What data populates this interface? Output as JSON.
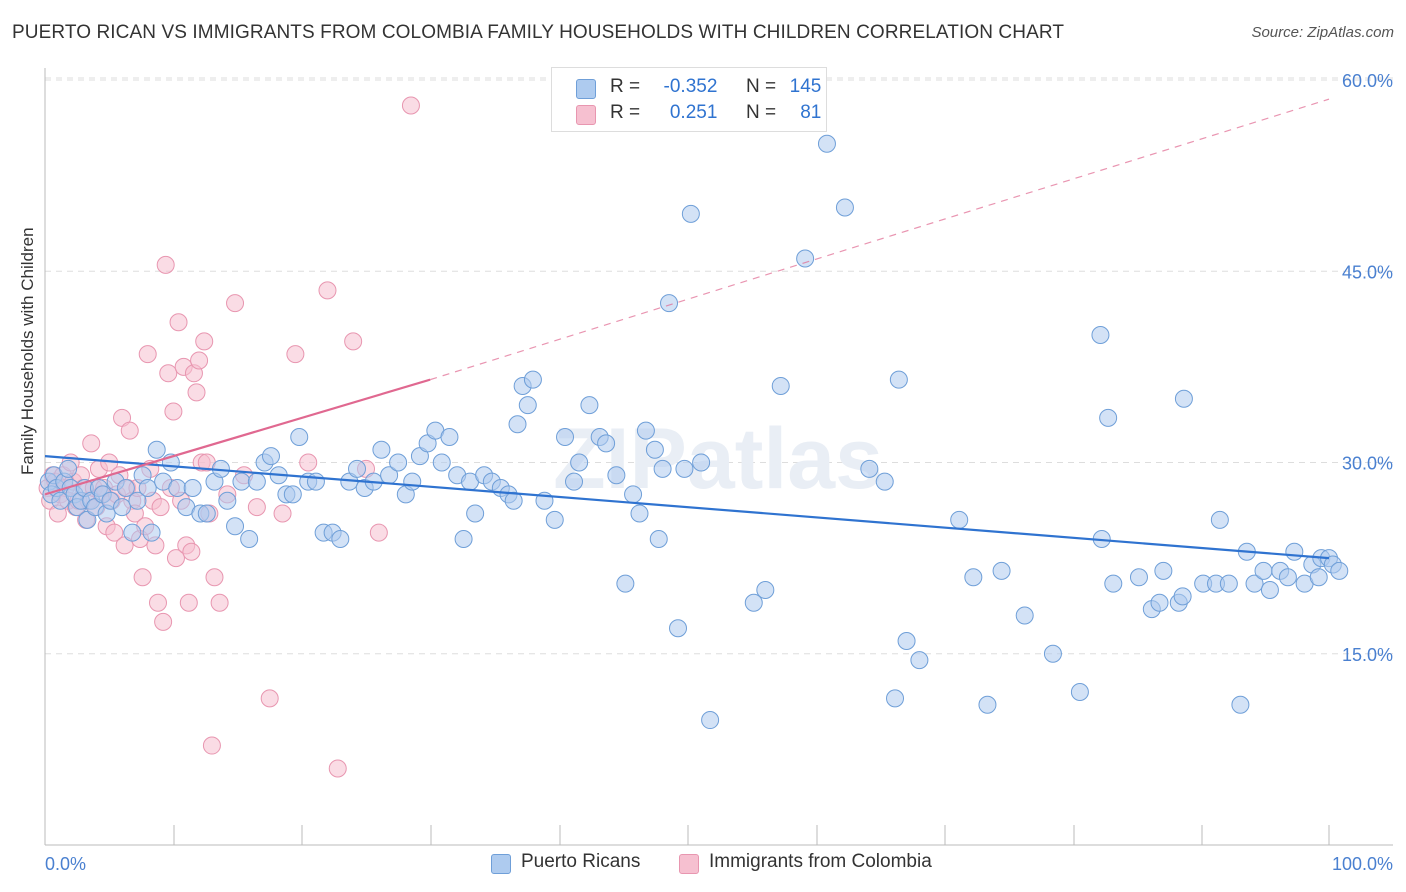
{
  "title": "PUERTO RICAN VS IMMIGRANTS FROM COLOMBIA FAMILY HOUSEHOLDS WITH CHILDREN CORRELATION CHART",
  "source": "Source: ZipAtlas.com",
  "watermark": "ZIPatlas",
  "colors": {
    "blue_fill": "#aecbef",
    "blue_stroke": "#6f9fd8",
    "blue_line": "#2f73d0",
    "pink_fill": "#f6c0d0",
    "pink_stroke": "#e896b0",
    "pink_line": "#e06890",
    "axis_text": "#4a80d0",
    "grid": "#dddddd"
  },
  "legend_top": {
    "rows": [
      {
        "r_label": "R =",
        "r_value": "-0.352",
        "n_label": "N =",
        "n_value": "145",
        "color": "blue"
      },
      {
        "r_label": "R =",
        "r_value": "0.251",
        "n_label": "N =",
        "n_value": "81",
        "color": "pink"
      }
    ]
  },
  "legend_bottom": {
    "items": [
      {
        "label": "Puerto Ricans",
        "color": "blue"
      },
      {
        "label": "Immigrants from Colombia",
        "color": "pink"
      }
    ]
  },
  "chart_data": {
    "type": "scatter",
    "title": "PUERTO RICAN VS IMMIGRANTS FROM COLOMBIA FAMILY HOUSEHOLDS WITH CHILDREN CORRELATION CHART",
    "xlabel": "",
    "ylabel": "Family Households with Children",
    "xlim": [
      0,
      100
    ],
    "ylim": [
      0,
      62
    ],
    "x_tick_labels": [
      "0.0%",
      "100.0%"
    ],
    "y_ticks": [
      15,
      30,
      45,
      60
    ],
    "y_tick_labels": [
      "15.0%",
      "30.0%",
      "45.0%",
      "60.0%"
    ],
    "grid": true,
    "legend_position": "top-center",
    "series": [
      {
        "name": "Puerto Ricans",
        "color": "blue",
        "r": -0.352,
        "n": 145,
        "trend": {
          "x": [
            0,
            100
          ],
          "y": [
            30.5,
            22.5
          ],
          "style": "solid"
        },
        "points": [
          [
            0.3,
            28.5
          ],
          [
            0.5,
            27.5
          ],
          [
            0.7,
            29
          ],
          [
            0.9,
            28
          ],
          [
            1.2,
            27
          ],
          [
            1.5,
            28.5
          ],
          [
            1.8,
            29.5
          ],
          [
            2,
            28
          ],
          [
            2.3,
            27.5
          ],
          [
            2.5,
            26.5
          ],
          [
            2.8,
            27
          ],
          [
            3.1,
            28
          ],
          [
            3.3,
            25.5
          ],
          [
            3.6,
            27
          ],
          [
            3.9,
            26.5
          ],
          [
            4.2,
            28
          ],
          [
            4.5,
            27.5
          ],
          [
            4.8,
            26
          ],
          [
            5.1,
            27
          ],
          [
            5.5,
            28.5
          ],
          [
            6,
            26.5
          ],
          [
            6.3,
            28
          ],
          [
            6.8,
            24.5
          ],
          [
            7.2,
            27
          ],
          [
            7.6,
            29
          ],
          [
            8,
            28
          ],
          [
            8.3,
            24.5
          ],
          [
            8.7,
            31
          ],
          [
            9.2,
            28.5
          ],
          [
            9.8,
            30
          ],
          [
            10.3,
            28
          ],
          [
            11,
            26.5
          ],
          [
            11.5,
            28
          ],
          [
            12.1,
            26
          ],
          [
            12.6,
            26
          ],
          [
            13.2,
            28.5
          ],
          [
            13.7,
            29.5
          ],
          [
            14.2,
            27
          ],
          [
            14.8,
            25
          ],
          [
            15.3,
            28.5
          ],
          [
            15.9,
            24
          ],
          [
            16.5,
            28.5
          ],
          [
            17.1,
            30
          ],
          [
            17.6,
            30.5
          ],
          [
            18.2,
            29
          ],
          [
            18.8,
            27.5
          ],
          [
            19.3,
            27.5
          ],
          [
            19.8,
            32
          ],
          [
            20.5,
            28.5
          ],
          [
            21.1,
            28.5
          ],
          [
            21.7,
            24.5
          ],
          [
            22.4,
            24.5
          ],
          [
            23,
            24
          ],
          [
            23.7,
            28.5
          ],
          [
            24.3,
            29.5
          ],
          [
            24.9,
            28
          ],
          [
            25.6,
            28.5
          ],
          [
            26.2,
            31
          ],
          [
            26.8,
            29
          ],
          [
            27.5,
            30
          ],
          [
            28.1,
            27.5
          ],
          [
            28.6,
            28.5
          ],
          [
            29.2,
            30.5
          ],
          [
            29.8,
            31.5
          ],
          [
            30.4,
            32.5
          ],
          [
            30.9,
            30
          ],
          [
            31.5,
            32
          ],
          [
            32.1,
            29
          ],
          [
            32.6,
            24
          ],
          [
            33.1,
            28.5
          ],
          [
            33.5,
            26
          ],
          [
            34.2,
            29
          ],
          [
            34.8,
            28.5
          ],
          [
            35.5,
            28
          ],
          [
            36.1,
            27.5
          ],
          [
            36.5,
            27
          ],
          [
            36.8,
            33
          ],
          [
            37.2,
            36
          ],
          [
            37.6,
            34.5
          ],
          [
            38,
            36.5
          ],
          [
            38.9,
            27
          ],
          [
            39.7,
            25.5
          ],
          [
            40.5,
            32
          ],
          [
            41.2,
            28.5
          ],
          [
            41.6,
            30
          ],
          [
            42.4,
            34.5
          ],
          [
            43.2,
            32
          ],
          [
            43.7,
            31.5
          ],
          [
            44.5,
            29
          ],
          [
            45.2,
            20.5
          ],
          [
            45.8,
            27.5
          ],
          [
            46.3,
            26
          ],
          [
            46.8,
            32.5
          ],
          [
            47.5,
            31
          ],
          [
            47.8,
            24
          ],
          [
            48.1,
            29.5
          ],
          [
            48.6,
            42.5
          ],
          [
            49.3,
            17
          ],
          [
            49.8,
            29.5
          ],
          [
            50.3,
            49.5
          ],
          [
            51.1,
            30
          ],
          [
            51.8,
            9.8
          ],
          [
            55.2,
            19
          ],
          [
            56.1,
            20
          ],
          [
            57.3,
            36
          ],
          [
            59.2,
            46
          ],
          [
            60.9,
            55
          ],
          [
            62.3,
            50
          ],
          [
            64.2,
            29.5
          ],
          [
            65.4,
            28.5
          ],
          [
            66.2,
            11.5
          ],
          [
            66.5,
            36.5
          ],
          [
            67.1,
            16
          ],
          [
            68.1,
            14.5
          ],
          [
            71.2,
            25.5
          ],
          [
            72.3,
            21
          ],
          [
            73.4,
            11
          ],
          [
            74.5,
            21.5
          ],
          [
            76.3,
            18
          ],
          [
            78.5,
            15
          ],
          [
            80.6,
            12
          ],
          [
            82.2,
            40
          ],
          [
            82.3,
            24
          ],
          [
            82.8,
            33.5
          ],
          [
            83.2,
            20.5
          ],
          [
            85.2,
            21
          ],
          [
            86.2,
            18.5
          ],
          [
            86.8,
            19
          ],
          [
            87.1,
            21.5
          ],
          [
            88.3,
            19
          ],
          [
            88.6,
            19.5
          ],
          [
            88.7,
            35
          ],
          [
            90.2,
            20.5
          ],
          [
            91.2,
            20.5
          ],
          [
            91.5,
            25.5
          ],
          [
            92.2,
            20.5
          ],
          [
            93.1,
            11
          ],
          [
            93.6,
            23
          ],
          [
            94.2,
            20.5
          ],
          [
            94.9,
            21.5
          ],
          [
            95.4,
            20
          ],
          [
            96.2,
            21.5
          ],
          [
            96.8,
            21
          ],
          [
            97.3,
            23
          ],
          [
            98.1,
            20.5
          ],
          [
            98.7,
            22
          ],
          [
            99.2,
            21
          ],
          [
            99.4,
            22.5
          ],
          [
            100,
            22.5
          ],
          [
            100.3,
            22
          ],
          [
            100.8,
            21.5
          ]
        ]
      },
      {
        "name": "Immigrants from Colombia",
        "color": "pink",
        "r": 0.251,
        "n": 81,
        "trend": {
          "x": [
            0,
            30
          ],
          "y": [
            27.5,
            36.5
          ],
          "style": "solid",
          "extended": {
            "x": [
              30,
              100
            ],
            "y": [
              36.5,
              58.5
            ],
            "style": "dashed"
          }
        },
        "points": [
          [
            0.2,
            28
          ],
          [
            0.4,
            27
          ],
          [
            0.6,
            29
          ],
          [
            0.8,
            28.5
          ],
          [
            1,
            26
          ],
          [
            1.2,
            27.5
          ],
          [
            1.4,
            29
          ],
          [
            1.6,
            28
          ],
          [
            1.8,
            27
          ],
          [
            2,
            30
          ],
          [
            2.2,
            28.5
          ],
          [
            2.4,
            26.5
          ],
          [
            2.6,
            27
          ],
          [
            2.8,
            29
          ],
          [
            3,
            28
          ],
          [
            3.2,
            25.5
          ],
          [
            3.4,
            27
          ],
          [
            3.6,
            31.5
          ],
          [
            3.8,
            28
          ],
          [
            4,
            26.5
          ],
          [
            4.2,
            29.5
          ],
          [
            4.4,
            27.5
          ],
          [
            4.6,
            28
          ],
          [
            4.8,
            25
          ],
          [
            5,
            30
          ],
          [
            5.2,
            27
          ],
          [
            5.4,
            24.5
          ],
          [
            5.6,
            27.5
          ],
          [
            5.8,
            29
          ],
          [
            6,
            33.5
          ],
          [
            6.2,
            23.5
          ],
          [
            6.4,
            28
          ],
          [
            6.6,
            32.5
          ],
          [
            6.8,
            27
          ],
          [
            7,
            26
          ],
          [
            7.2,
            28
          ],
          [
            7.4,
            24
          ],
          [
            7.6,
            21
          ],
          [
            7.8,
            25
          ],
          [
            8,
            38.5
          ],
          [
            8.2,
            29.5
          ],
          [
            8.4,
            27
          ],
          [
            8.6,
            23.5
          ],
          [
            8.8,
            19
          ],
          [
            9,
            26.5
          ],
          [
            9.2,
            17.5
          ],
          [
            9.4,
            45.5
          ],
          [
            9.6,
            37
          ],
          [
            9.8,
            28
          ],
          [
            10,
            34
          ],
          [
            10.2,
            22.5
          ],
          [
            10.4,
            41
          ],
          [
            10.6,
            27
          ],
          [
            10.8,
            37.5
          ],
          [
            11,
            23.5
          ],
          [
            11.2,
            19
          ],
          [
            11.4,
            23
          ],
          [
            11.6,
            37
          ],
          [
            11.8,
            35.5
          ],
          [
            12,
            38
          ],
          [
            12.2,
            30
          ],
          [
            12.4,
            39.5
          ],
          [
            12.6,
            30
          ],
          [
            12.8,
            26
          ],
          [
            13,
            7.8
          ],
          [
            13.2,
            21
          ],
          [
            13.6,
            19
          ],
          [
            14.2,
            27.5
          ],
          [
            14.8,
            42.5
          ],
          [
            15.5,
            29
          ],
          [
            16.5,
            26.5
          ],
          [
            17.5,
            11.5
          ],
          [
            18.5,
            26
          ],
          [
            19.5,
            38.5
          ],
          [
            20.5,
            30
          ],
          [
            22,
            43.5
          ],
          [
            22.8,
            6
          ],
          [
            24,
            39.5
          ],
          [
            25,
            29.5
          ],
          [
            26,
            24.5
          ],
          [
            28.5,
            58
          ]
        ]
      }
    ]
  }
}
